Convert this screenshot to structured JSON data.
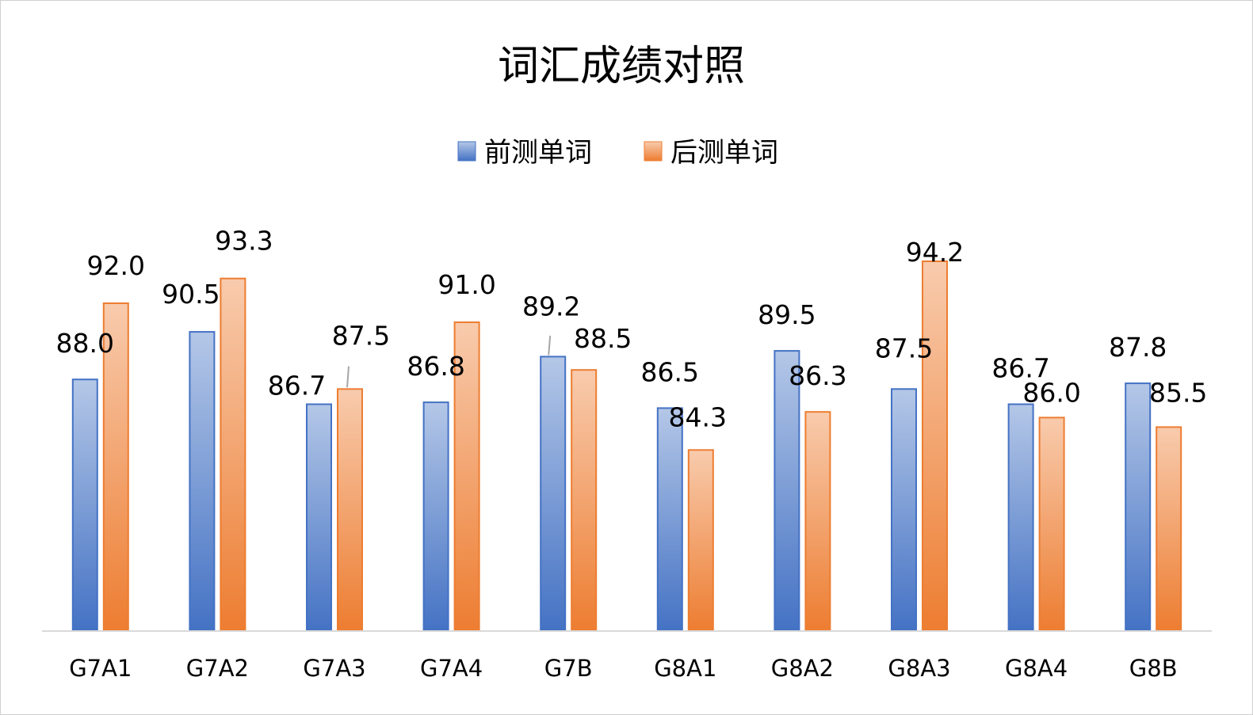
{
  "chart_data": {
    "type": "bar",
    "title": "词汇成绩对照",
    "categories": [
      "G7A1",
      "G7A2",
      "G7A3",
      "G7A4",
      "G7B",
      "G8A1",
      "G8A2",
      "G8A3",
      "G8A4",
      "G8B"
    ],
    "series": [
      {
        "name": "前测单词",
        "color": "#4472c4",
        "color_light": "#b4c7e7",
        "values": [
          88.0,
          90.5,
          86.7,
          86.8,
          89.2,
          86.5,
          89.5,
          87.5,
          86.7,
          87.8
        ],
        "labels": [
          "88.0",
          "90.5",
          "86.7",
          "86.8",
          "89.2",
          "86.5",
          "89.5",
          "87.5",
          "86.7",
          "87.8"
        ]
      },
      {
        "name": "后测单词",
        "color": "#ed7d31",
        "color_light": "#f8cbad",
        "values": [
          92.0,
          93.3,
          87.5,
          91.0,
          88.5,
          84.3,
          86.3,
          94.2,
          86.0,
          85.5
        ],
        "labels": [
          "92.0",
          "93.3",
          "87.5",
          "91.0",
          "88.5",
          "84.3",
          "86.3",
          "94.2",
          "86.0",
          "85.5"
        ]
      }
    ],
    "legend_position": "top-center",
    "grid": false,
    "ylim": [
      74.8,
      95.3
    ]
  }
}
